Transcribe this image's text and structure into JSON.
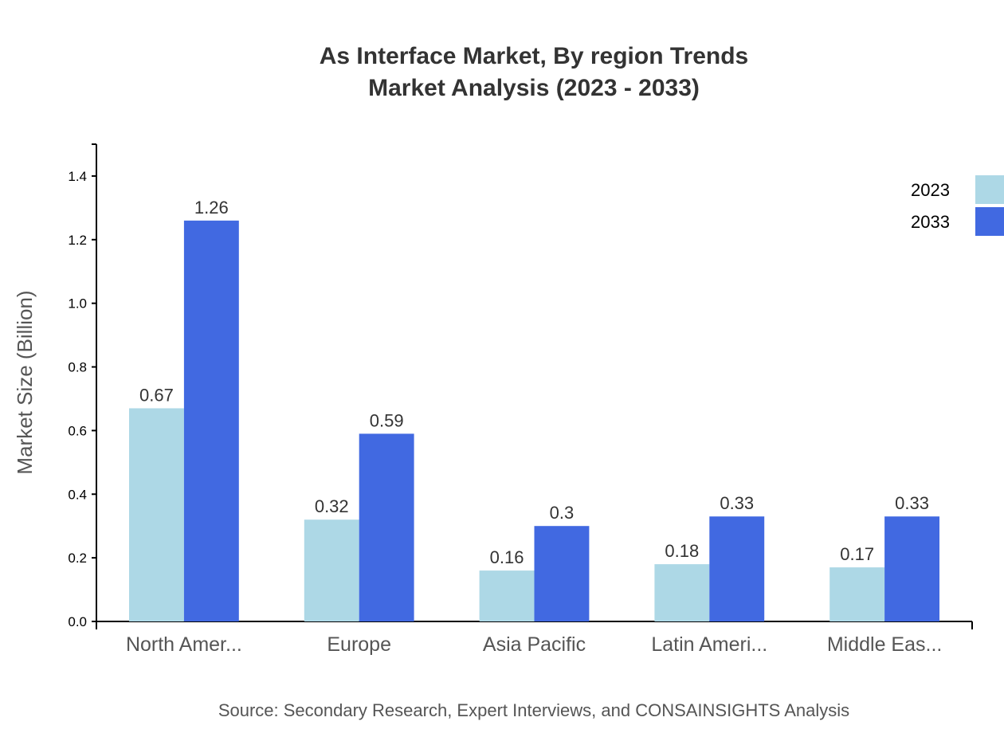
{
  "chart_data": {
    "type": "bar",
    "title": [
      "As Interface Market, By region Trends",
      "Market Analysis (2023 - 2033)"
    ],
    "xlabel": "",
    "ylabel": "Market Size (Billion)",
    "ylim": [
      0,
      1.5
    ],
    "yticks": [
      "0.0",
      "0.2",
      "0.4",
      "0.6",
      "0.8",
      "1.0",
      "1.2",
      "1.4"
    ],
    "categories": [
      "North Amer...",
      "Europe",
      "Asia Pacific",
      "Latin Ameri...",
      "Middle Eas..."
    ],
    "series": [
      {
        "name": "2023",
        "color": "#add8e6",
        "values": [
          0.67,
          0.32,
          0.16,
          0.18,
          0.17
        ]
      },
      {
        "name": "2033",
        "color": "#4169e1",
        "values": [
          1.26,
          0.59,
          0.3,
          0.33,
          0.33
        ]
      }
    ],
    "legend": "top-right",
    "grid": false,
    "source": "Source: Secondary Research, Expert Interviews, and CONSAINSIGHTS Analysis"
  }
}
